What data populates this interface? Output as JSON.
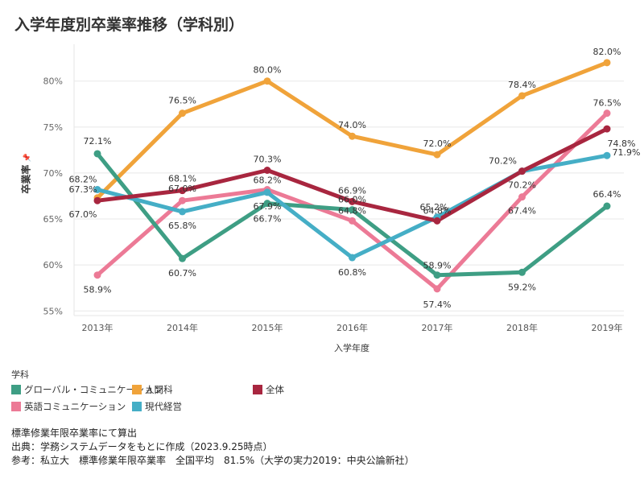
{
  "title": "入学年度別卒業率推移（学科別）",
  "chart_data": {
    "type": "line",
    "title": "入学年度別卒業率推移（学科別）",
    "xlabel": "入学年度",
    "ylabel": "卒業率",
    "categories": [
      "2013年",
      "2014年",
      "2015年",
      "2016年",
      "2017年",
      "2018年",
      "2019年"
    ],
    "ylim": [
      54.5,
      84
    ],
    "yticks": [
      55,
      60,
      65,
      70,
      75,
      80
    ],
    "ytick_labels": [
      "55%",
      "60%",
      "65%",
      "70%",
      "75%",
      "80%"
    ],
    "grid": true,
    "series": [
      {
        "name": "人間科",
        "color": "#f0a33a",
        "values": [
          67.3,
          76.5,
          80.0,
          74.0,
          72.0,
          78.4,
          82.0
        ],
        "labels": [
          "67.3%",
          "76.5%",
          "80.0%",
          "74.0%",
          "72.0%",
          "78.4%",
          "82.0%"
        ]
      },
      {
        "name": "英語コミュニケーション",
        "color": "#ec7a96",
        "values": [
          58.9,
          67.0,
          68.2,
          64.8,
          57.4,
          67.4,
          76.5
        ],
        "labels": [
          "58.9%",
          "67.0%",
          "68.2%",
          "64.8%",
          "57.4%",
          "67.4%",
          "76.5%"
        ]
      },
      {
        "name": "グローバル・コミュニケーション",
        "color": "#3e9e84",
        "values": [
          72.1,
          60.7,
          66.7,
          66.0,
          58.9,
          59.2,
          66.4
        ],
        "labels": [
          "72.1%",
          "60.7%",
          "66.7%",
          "66.0%",
          "58.9%",
          "59.2%",
          "66.4%"
        ]
      },
      {
        "name": "現代経営",
        "color": "#45aec6",
        "values": [
          68.2,
          65.8,
          67.9,
          60.8,
          65.2,
          70.2,
          71.9
        ],
        "labels": [
          "68.2%",
          "65.8%",
          "67.9%",
          "60.8%",
          "65.2%",
          "70.2%",
          "71.9%"
        ]
      },
      {
        "name": "全体",
        "color": "#a8263f",
        "values": [
          67.0,
          68.1,
          70.3,
          66.9,
          64.8,
          70.2,
          74.8
        ],
        "labels": [
          "67.0%",
          "68.1%",
          "70.3%",
          "66.9%",
          "64.8%",
          "70.2%",
          "74.8%"
        ]
      }
    ]
  },
  "legend": {
    "title": "学科",
    "items": [
      {
        "label": "グローバル・コミュニケーション",
        "color": "#3e9e84"
      },
      {
        "label": "人間科",
        "color": "#f0a33a"
      },
      {
        "label": "全体",
        "color": "#a8263f"
      },
      {
        "label": "英語コミュニケーション",
        "color": "#ec7a96"
      },
      {
        "label": "現代経営",
        "color": "#45aec6"
      }
    ]
  },
  "notes": [
    "標準修業年限卒業率にて算出",
    "出典：学務システムデータをもとに作成（2023.9.25時点）",
    "参考：私立大　標準修業年限卒業率　全国平均　81.5%（大学の実力2019：中央公論新社）"
  ]
}
